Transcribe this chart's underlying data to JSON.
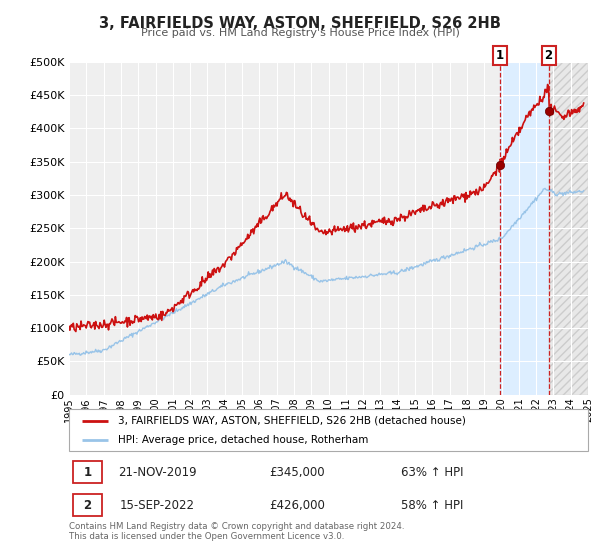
{
  "title": "3, FAIRFIELDS WAY, ASTON, SHEFFIELD, S26 2HB",
  "subtitle": "Price paid vs. HM Land Registry's House Price Index (HPI)",
  "ylim": [
    0,
    500000
  ],
  "yticks": [
    0,
    50000,
    100000,
    150000,
    200000,
    250000,
    300000,
    350000,
    400000,
    450000,
    500000
  ],
  "ytick_labels": [
    "£0",
    "£50K",
    "£100K",
    "£150K",
    "£200K",
    "£250K",
    "£300K",
    "£350K",
    "£400K",
    "£450K",
    "£500K"
  ],
  "xlim": [
    1995,
    2025
  ],
  "xticks": [
    1995,
    1996,
    1997,
    1998,
    1999,
    2000,
    2001,
    2002,
    2003,
    2004,
    2005,
    2006,
    2007,
    2008,
    2009,
    2010,
    2011,
    2012,
    2013,
    2014,
    2015,
    2016,
    2017,
    2018,
    2019,
    2020,
    2021,
    2022,
    2023,
    2024,
    2025
  ],
  "background_color": "#ffffff",
  "plot_bg_color": "#efefef",
  "grid_color": "#ffffff",
  "hpi_line_color": "#99c4e8",
  "price_line_color": "#cc1111",
  "marker1_x": 2019.9,
  "marker1_y": 345000,
  "marker2_x": 2022.72,
  "marker2_y": 426000,
  "vline1_x": 2019.9,
  "vline2_x": 2022.72,
  "legend_label_red": "3, FAIRFIELDS WAY, ASTON, SHEFFIELD, S26 2HB (detached house)",
  "legend_label_blue": "HPI: Average price, detached house, Rotherham",
  "table_row1": [
    "1",
    "21-NOV-2019",
    "£345,000",
    "63% ↑ HPI"
  ],
  "table_row2": [
    "2",
    "15-SEP-2022",
    "£426,000",
    "58% ↑ HPI"
  ],
  "footnote1": "Contains HM Land Registry data © Crown copyright and database right 2024.",
  "footnote2": "This data is licensed under the Open Government Licence v3.0.",
  "shaded_between_color": "#ddeeff",
  "hatch_color": "#cccccc"
}
